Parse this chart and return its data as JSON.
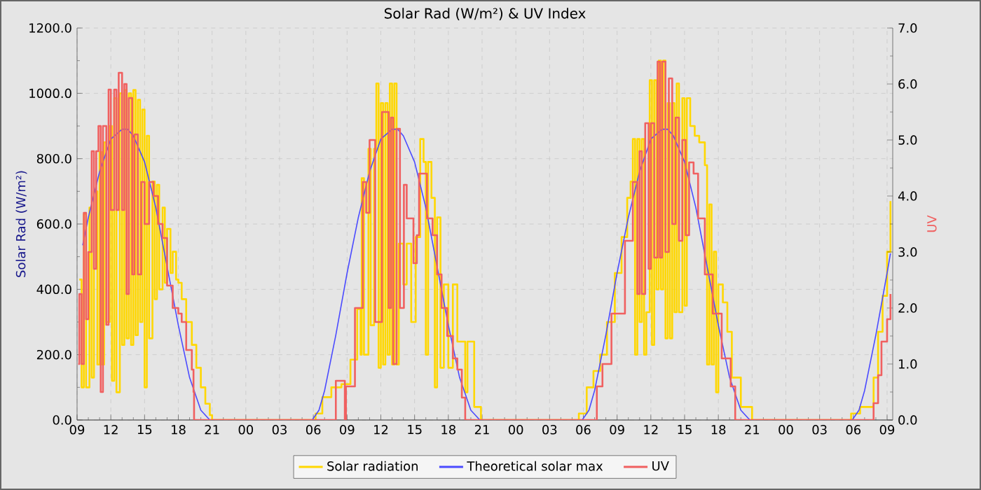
{
  "chart_data": {
    "type": "step",
    "title": "Solar Rad (W/m²) &  UV Index",
    "ylabel": "Solar Rad (W/m²)",
    "y2label": "UV",
    "xlim": [
      9,
      81.5
    ],
    "ylim": [
      0,
      1200
    ],
    "y2lim": [
      0,
      7
    ],
    "xticks": [
      {
        "value": 9,
        "label": "09"
      },
      {
        "value": 12,
        "label": "12"
      },
      {
        "value": 15,
        "label": "15"
      },
      {
        "value": 18,
        "label": "18"
      },
      {
        "value": 21,
        "label": "21"
      },
      {
        "value": 24,
        "label": "00"
      },
      {
        "value": 27,
        "label": "03"
      },
      {
        "value": 30,
        "label": "06"
      },
      {
        "value": 33,
        "label": "09"
      },
      {
        "value": 36,
        "label": "12"
      },
      {
        "value": 39,
        "label": "15"
      },
      {
        "value": 42,
        "label": "18"
      },
      {
        "value": 45,
        "label": "21"
      },
      {
        "value": 48,
        "label": "00"
      },
      {
        "value": 51,
        "label": "03"
      },
      {
        "value": 54,
        "label": "06"
      },
      {
        "value": 57,
        "label": "09"
      },
      {
        "value": 60,
        "label": "12"
      },
      {
        "value": 63,
        "label": "15"
      },
      {
        "value": 66,
        "label": "18"
      },
      {
        "value": 69,
        "label": "21"
      },
      {
        "value": 72,
        "label": "00"
      },
      {
        "value": 75,
        "label": "03"
      },
      {
        "value": 78,
        "label": "06"
      },
      {
        "value": 81,
        "label": "09"
      }
    ],
    "yticks": [
      {
        "value": 0,
        "label": "0.0"
      },
      {
        "value": 200,
        "label": "200.0"
      },
      {
        "value": 400,
        "label": "400.0"
      },
      {
        "value": 600,
        "label": "600.0"
      },
      {
        "value": 800,
        "label": "800.0"
      },
      {
        "value": 1000,
        "label": "1000.0"
      },
      {
        "value": 1200,
        "label": "1200.0"
      }
    ],
    "y2ticks": [
      {
        "value": 0,
        "label": "0.0"
      },
      {
        "value": 1,
        "label": "1.0"
      },
      {
        "value": 2,
        "label": "2.0"
      },
      {
        "value": 3,
        "label": "3.0"
      },
      {
        "value": 4,
        "label": "4.0"
      },
      {
        "value": 5,
        "label": "5.0"
      },
      {
        "value": 6,
        "label": "6.0"
      },
      {
        "value": 7,
        "label": "7.0"
      }
    ],
    "grid": true,
    "legend": "bottom",
    "series": [
      {
        "name": "Solar radiation",
        "color": "#ffd700",
        "x": [
          9.2,
          9.4,
          9.6,
          9.8,
          10.1,
          10.3,
          10.5,
          10.8,
          11.0,
          11.2,
          11.4,
          11.6,
          11.9,
          12.1,
          12.3,
          12.5,
          12.8,
          13.0,
          13.2,
          13.4,
          13.6,
          13.8,
          14.0,
          14.2,
          14.4,
          14.6,
          14.8,
          15.0,
          15.2,
          15.4,
          15.7,
          15.9,
          16.1,
          16.3,
          16.6,
          16.8,
          17.0,
          17.3,
          17.5,
          17.8,
          18.0,
          18.3,
          18.7,
          19.2,
          19.6,
          20.0,
          20.4,
          20.8,
          21.0,
          29.9,
          30.2,
          30.8,
          31.6,
          32.5,
          33.3,
          33.9,
          34.2,
          34.3,
          34.5,
          34.9,
          35.1,
          35.4,
          35.6,
          35.8,
          36.0,
          36.2,
          36.4,
          36.6,
          36.8,
          37.0,
          37.2,
          37.4,
          37.6,
          38.0,
          38.3,
          38.7,
          39.1,
          39.5,
          39.8,
          40.0,
          40.2,
          40.5,
          40.8,
          41.0,
          41.3,
          41.6,
          42.0,
          42.4,
          42.8,
          43.2,
          43.5,
          43.7,
          44.3,
          44.9,
          53.5,
          53.6,
          54.3,
          54.9,
          55.5,
          56.1,
          56.8,
          57.4,
          57.9,
          58.2,
          58.4,
          58.6,
          58.8,
          59.0,
          59.2,
          59.4,
          59.6,
          59.9,
          60.1,
          60.3,
          60.5,
          60.7,
          60.9,
          61.1,
          61.3,
          61.5,
          61.7,
          61.9,
          62.1,
          62.3,
          62.5,
          62.8,
          63.0,
          63.2,
          63.5,
          63.9,
          64.3,
          64.8,
          65.0,
          65.2,
          65.4,
          65.6,
          65.8,
          66.0,
          66.4,
          66.8,
          67.2,
          67.5,
          68.0,
          68.4,
          69.0,
          77.6,
          77.8,
          78.6,
          79.4,
          79.8,
          80.2,
          80.6,
          81.0,
          81.3
        ],
        "values": [
          430,
          100,
          630,
          100,
          650,
          130,
          700,
          170,
          820,
          170,
          850,
          300,
          900,
          120,
          985,
          85,
          1000,
          230,
          1010,
          250,
          1000,
          230,
          1010,
          260,
          980,
          300,
          950,
          100,
          870,
          250,
          730,
          370,
          720,
          400,
          650,
          420,
          585,
          450,
          515,
          430,
          420,
          370,
          300,
          230,
          160,
          100,
          50,
          15,
          0,
          0,
          20,
          70,
          100,
          110,
          185,
          340,
          200,
          740,
          200,
          830,
          290,
          830,
          1030,
          160,
          970,
          170,
          970,
          200,
          1030,
          170,
          1030,
          170,
          540,
          415,
          540,
          300,
          560,
          860,
          790,
          200,
          790,
          680,
          100,
          620,
          160,
          415,
          160,
          415,
          240,
          240,
          85,
          240,
          40,
          0,
          0,
          20,
          100,
          150,
          200,
          300,
          450,
          560,
          680,
          730,
          860,
          200,
          860,
          300,
          860,
          200,
          330,
          1040,
          230,
          1040,
          400,
          1100,
          400,
          1100,
          250,
          970,
          250,
          970,
          330,
          1030,
          330,
          985,
          350,
          985,
          900,
          870,
          850,
          780,
          170,
          660,
          170,
          515,
          85,
          415,
          360,
          270,
          130,
          130,
          40,
          40,
          0,
          0,
          20,
          40,
          40,
          130,
          270,
          380,
          515,
          670
        ]
      },
      {
        "name": "Theoretical solar max",
        "color": "#4b4bff",
        "type": "line",
        "x": [
          9.5,
          10,
          11,
          12,
          13,
          13.5,
          14,
          15,
          16,
          17,
          18,
          19,
          20,
          20.8,
          29.9,
          30.5,
          31,
          32,
          33,
          34,
          35,
          36,
          37,
          37.5,
          38,
          39,
          40,
          41,
          42,
          43,
          44,
          44.8,
          53.9,
          54.5,
          55,
          56,
          57,
          58,
          59,
          60,
          61,
          61.5,
          62,
          63,
          64,
          65,
          66,
          67,
          68,
          68.8,
          77.9,
          78.5,
          79,
          80,
          81,
          81.3
        ],
        "values": [
          535,
          620,
          760,
          860,
          890,
          890,
          870,
          790,
          650,
          470,
          290,
          130,
          30,
          0,
          0,
          30,
          90,
          260,
          450,
          620,
          760,
          860,
          890,
          890,
          870,
          790,
          650,
          470,
          290,
          130,
          30,
          0,
          0,
          30,
          90,
          260,
          450,
          620,
          760,
          860,
          890,
          890,
          870,
          790,
          650,
          470,
          290,
          130,
          30,
          0,
          0,
          30,
          90,
          260,
          450,
          510
        ]
      },
      {
        "name": "UV",
        "color": "#f06060",
        "axis": "y2",
        "x": [
          9.1,
          9.2,
          9.4,
          9.6,
          9.8,
          10.0,
          10.3,
          10.5,
          10.7,
          10.9,
          11.1,
          11.3,
          11.6,
          11.8,
          12.0,
          12.3,
          12.5,
          12.7,
          13.0,
          13.2,
          13.4,
          13.6,
          13.9,
          14.1,
          14.4,
          14.7,
          15.0,
          15.4,
          15.8,
          16.2,
          16.6,
          17.0,
          17.5,
          18.0,
          18.3,
          18.7,
          19.2,
          19.35,
          19.4,
          31.95,
          32.0,
          32.7,
          32.8,
          32.9,
          33.3,
          33.7,
          34.1,
          34.4,
          34.7,
          35.0,
          35.2,
          35.5,
          35.8,
          36.1,
          36.4,
          36.7,
          36.9,
          37.1,
          37.4,
          37.7,
          38.05,
          38.3,
          38.9,
          39.2,
          39.4,
          39.7,
          40.1,
          40.6,
          41.0,
          41.4,
          41.9,
          42.4,
          42.8,
          43.2,
          43.5,
          55.15,
          55.2,
          55.7,
          56.5,
          57.7,
          58.4,
          58.8,
          59.0,
          59.2,
          59.5,
          59.8,
          60.0,
          60.3,
          60.6,
          60.8,
          61.0,
          61.3,
          61.6,
          61.9,
          62.2,
          62.5,
          62.8,
          63.1,
          63.4,
          63.8,
          64.2,
          64.8,
          65.5,
          66.3,
          67.1,
          67.5,
          79.75,
          79.8,
          80.2,
          80.5,
          81.0,
          81.3
        ],
        "values": [
          1.0,
          2.25,
          1.0,
          3.7,
          1.8,
          3.0,
          4.8,
          2.7,
          4.8,
          5.25,
          0.5,
          5.25,
          1.7,
          5.9,
          3.75,
          5.9,
          3.75,
          6.2,
          3.75,
          6.0,
          2.25,
          5.75,
          2.6,
          5.1,
          2.6,
          4.25,
          3.5,
          4.25,
          4.0,
          3.5,
          3.25,
          2.4,
          2.0,
          1.9,
          1.75,
          1.25,
          0.9,
          0.5,
          0,
          0,
          0.7,
          0.7,
          0,
          0.6,
          0.6,
          2.0,
          2.0,
          4.25,
          3.7,
          5.0,
          5.0,
          1.75,
          1.75,
          5.5,
          5.5,
          2.0,
          5.4,
          1.0,
          5.2,
          2.0,
          4.2,
          3.6,
          2.8,
          3.3,
          4.4,
          4.4,
          3.6,
          3.3,
          2.6,
          2.0,
          1.5,
          1.1,
          0.9,
          0.4,
          0,
          0,
          0.6,
          1.0,
          1.9,
          3.2,
          4.25,
          2.25,
          4.8,
          2.25,
          5.3,
          2.7,
          5.3,
          2.9,
          6.4,
          2.9,
          6.4,
          3.0,
          6.1,
          3.5,
          5.4,
          3.2,
          5.0,
          3.3,
          4.6,
          4.4,
          3.6,
          2.6,
          1.9,
          1.1,
          0.6,
          0,
          0,
          0.3,
          0.8,
          1.4,
          1.8,
          2.25
        ]
      }
    ]
  }
}
